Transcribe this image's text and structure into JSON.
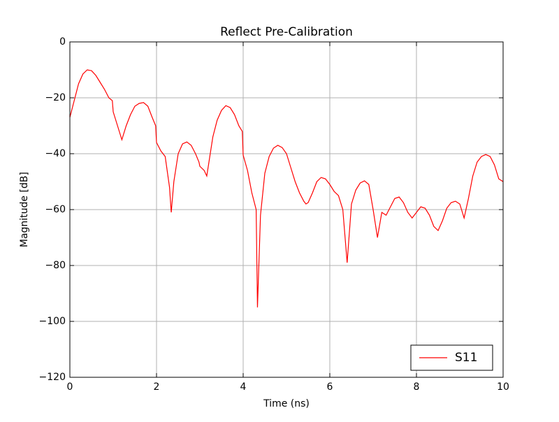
{
  "chart_data": {
    "type": "line",
    "title": "Reflect Pre-Calibration",
    "x_label": "Time (ns)",
    "y_label": "Magnitude [dB]",
    "x": [
      0,
      0.1,
      0.2,
      0.3,
      0.4,
      0.5,
      0.6,
      0.7,
      0.8,
      0.9,
      0.98,
      1.0,
      1.1,
      1.2,
      1.3,
      1.4,
      1.5,
      1.6,
      1.7,
      1.8,
      1.9,
      1.98,
      2.0,
      2.1,
      2.2,
      2.3,
      2.34,
      2.4,
      2.5,
      2.6,
      2.7,
      2.8,
      2.9,
      2.98,
      3.0,
      3.1,
      3.16,
      3.2,
      3.3,
      3.4,
      3.5,
      3.6,
      3.7,
      3.8,
      3.9,
      3.98,
      4.0,
      4.1,
      4.2,
      4.3,
      4.33,
      4.4,
      4.5,
      4.6,
      4.7,
      4.8,
      4.9,
      5.0,
      5.1,
      5.2,
      5.3,
      5.4,
      5.45,
      5.5,
      5.6,
      5.7,
      5.8,
      5.9,
      6.0,
      6.1,
      6.2,
      6.3,
      6.4,
      6.5,
      6.6,
      6.7,
      6.8,
      6.9,
      7.0,
      7.1,
      7.2,
      7.3,
      7.4,
      7.5,
      7.6,
      7.7,
      7.8,
      7.9,
      8.0,
      8.1,
      8.2,
      8.3,
      8.4,
      8.5,
      8.6,
      8.7,
      8.8,
      8.9,
      9.0,
      9.1,
      9.2,
      9.3,
      9.4,
      9.5,
      9.6,
      9.7,
      9.8,
      9.9,
      10.0
    ],
    "series": [
      {
        "name": "S11",
        "color": "#ff0000",
        "values": [
          -27,
          -21,
          -15,
          -11.5,
          -10,
          -10.3,
          -12,
          -14.5,
          -17,
          -20,
          -21,
          -25,
          -30,
          -35,
          -30,
          -26,
          -23,
          -22,
          -21.7,
          -23,
          -27,
          -30,
          -36,
          -39,
          -41,
          -52,
          -61,
          -50,
          -40,
          -36.5,
          -35.8,
          -37,
          -40,
          -43,
          -44.5,
          -46,
          -48,
          -44,
          -34,
          -28,
          -24.5,
          -22.8,
          -23.5,
          -26,
          -30,
          -32,
          -40.5,
          -46,
          -54,
          -60,
          -95,
          -62,
          -47,
          -41,
          -38,
          -37,
          -37.8,
          -40,
          -45,
          -50,
          -54,
          -57,
          -58,
          -57.5,
          -54,
          -50,
          -48.5,
          -49,
          -51,
          -53.5,
          -55,
          -60,
          -79,
          -58,
          -53,
          -50.5,
          -49.7,
          -51,
          -60,
          -70,
          -61,
          -62,
          -59,
          -56,
          -55.5,
          -57.5,
          -61,
          -63,
          -61,
          -59,
          -59.5,
          -62,
          -66,
          -67.5,
          -64,
          -59.5,
          -57.5,
          -57,
          -58,
          -63,
          -56,
          -48,
          -43,
          -41,
          -40.3,
          -41,
          -44,
          -49,
          -50
        ]
      }
    ],
    "xlim": [
      0,
      10
    ],
    "xticks": [
      0,
      2,
      4,
      6,
      8,
      10
    ],
    "ylim": [
      -120,
      0
    ],
    "yticks": [
      {
        "value": -120,
        "label": "−120"
      },
      {
        "value": -100,
        "label": "−100"
      },
      {
        "value": -80,
        "label": "−80"
      },
      {
        "value": -60,
        "label": "−60"
      },
      {
        "value": -40,
        "label": "−40"
      },
      {
        "value": -20,
        "label": "−20"
      },
      0
    ],
    "grid": true,
    "legend": "lower right"
  }
}
